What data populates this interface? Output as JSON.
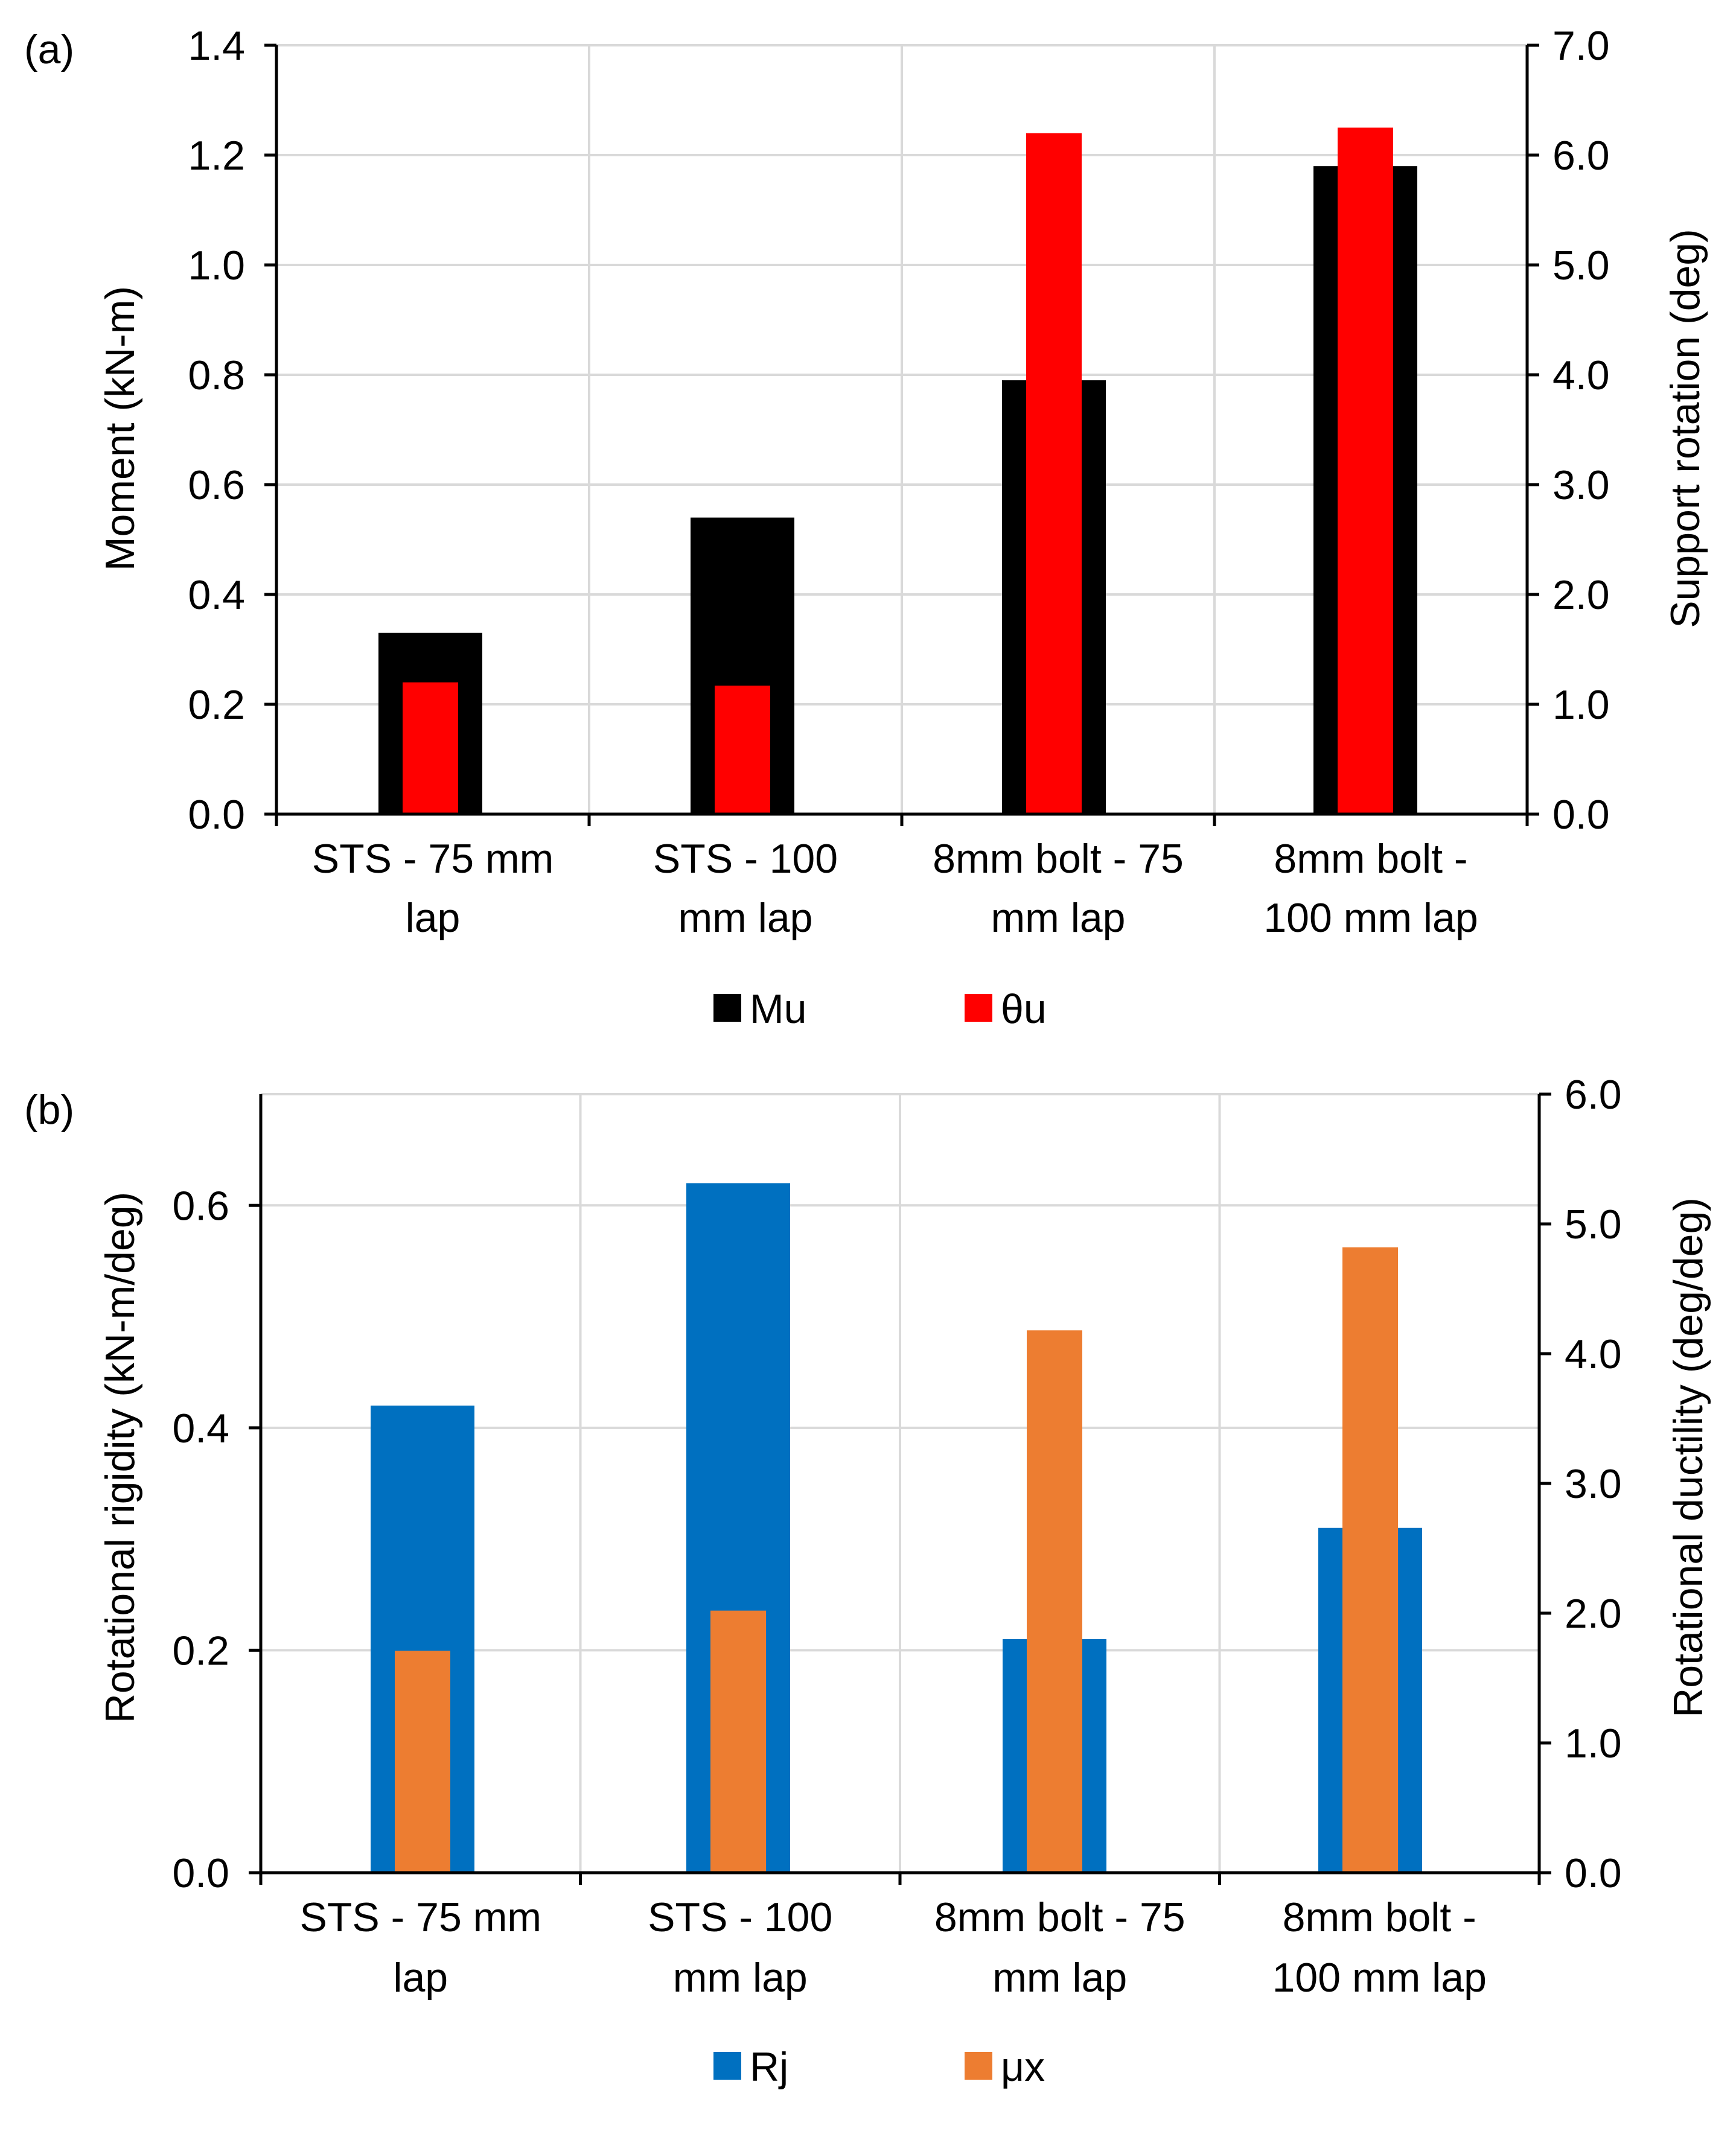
{
  "chart_data": [
    {
      "id": "a",
      "panel_label": "(a)",
      "type": "bar",
      "categories": [
        "STS - 75 mm lap",
        "STS - 100 mm lap",
        "8mm bolt - 75 mm lap",
        "8mm bolt - 100 mm lap"
      ],
      "category_lines": [
        [
          "STS - 75 mm",
          "lap"
        ],
        [
          "STS - 100",
          "mm lap"
        ],
        [
          "8mm bolt - 75",
          "mm lap"
        ],
        [
          "8mm bolt -",
          "100 mm lap"
        ]
      ],
      "ylabel": "Moment (kN-m)",
      "y2label": "Support rotation (deg)",
      "ylim": [
        0,
        1.4
      ],
      "y2lim": [
        0,
        7.0
      ],
      "yticks": [
        "0.0",
        "0.2",
        "0.4",
        "0.6",
        "0.8",
        "1.0",
        "1.2",
        "1.4"
      ],
      "y2ticks": [
        "0.0",
        "1.0",
        "2.0",
        "3.0",
        "4.0",
        "5.0",
        "6.0",
        "7.0"
      ],
      "grid": true,
      "legend_position": "bottom",
      "series": [
        {
          "name": "Mu",
          "axis": "left",
          "color": "#000000",
          "values": [
            0.33,
            0.54,
            0.79,
            1.18
          ]
        },
        {
          "name": "θu",
          "axis": "right",
          "color": "#ff0000",
          "values": [
            1.2,
            1.17,
            6.2,
            6.25
          ]
        }
      ]
    },
    {
      "id": "b",
      "panel_label": "(b)",
      "type": "bar",
      "categories": [
        "STS - 75 mm lap",
        "STS - 100 mm lap",
        "8mm bolt - 75 mm lap",
        "8mm bolt - 100 mm lap"
      ],
      "category_lines": [
        [
          "STS - 75 mm",
          "lap"
        ],
        [
          "STS - 100",
          "mm lap"
        ],
        [
          "8mm bolt - 75",
          "mm lap"
        ],
        [
          "8mm bolt -",
          "100 mm lap"
        ]
      ],
      "ylabel": "Rotational rigidity (kN-m/deg)",
      "y2label": "Rotational ductility (deg/deg)",
      "ylim": [
        0,
        0.7
      ],
      "y2lim": [
        0,
        6.0
      ],
      "yticks": [
        "0.0",
        "0.2",
        "0.4",
        "0.6"
      ],
      "yticks_values": [
        0,
        0.2,
        0.4,
        0.6
      ],
      "y2ticks": [
        "0.0",
        "1.0",
        "2.0",
        "3.0",
        "4.0",
        "5.0",
        "6.0"
      ],
      "grid": true,
      "legend_position": "bottom",
      "series": [
        {
          "name": "Rj",
          "axis": "left",
          "color": "#0070c0",
          "values": [
            0.42,
            0.62,
            0.21,
            0.31
          ]
        },
        {
          "name": "μx",
          "axis": "right",
          "color": "#ed7d31",
          "values": [
            1.71,
            2.02,
            4.18,
            4.82
          ]
        }
      ]
    }
  ]
}
